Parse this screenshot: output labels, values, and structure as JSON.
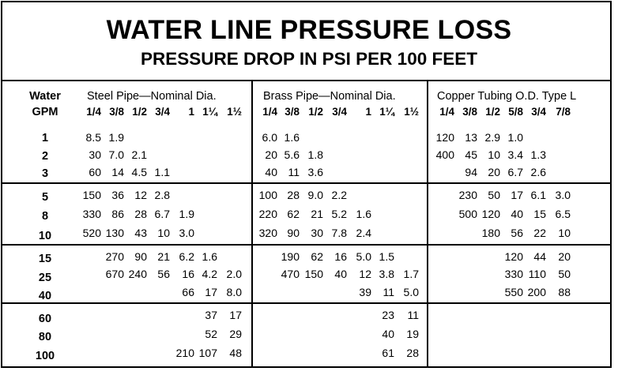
{
  "title": "WATER LINE PRESSURE LOSS",
  "subtitle": "PRESSURE DROP IN PSI PER 100 FEET",
  "gpm_header": {
    "line1": "Water",
    "line2": "GPM"
  },
  "steel": {
    "header": "Steel Pipe—Nominal Dia.",
    "sizes": [
      "1/4",
      "3/8",
      "1/2",
      "3/4",
      "1",
      "1¼",
      "1½"
    ]
  },
  "brass": {
    "header": "Brass Pipe—Nominal Dia.",
    "sizes": [
      "1/4",
      "3/8",
      "1/2",
      "3/4",
      "1",
      "1¼",
      "1½"
    ]
  },
  "copper": {
    "header": "Copper Tubing O.D. Type L",
    "sizes": [
      "1/4",
      "3/8",
      "1/2",
      "5/8",
      "3/4",
      "7/8"
    ]
  },
  "gpm": [
    "1",
    "2",
    "3",
    "5",
    "8",
    "10",
    "15",
    "25",
    "40",
    "60",
    "80",
    "100"
  ],
  "rows": [
    {
      "steel": [
        "8.5",
        "1.9",
        "",
        "",
        "",
        "",
        ""
      ],
      "brass": [
        "6.0",
        "1.6",
        "",
        "",
        "",
        "",
        ""
      ],
      "copper": [
        "120",
        "13",
        "2.9",
        "1.0",
        "",
        ""
      ]
    },
    {
      "steel": [
        "30",
        "7.0",
        "2.1",
        "",
        "",
        "",
        ""
      ],
      "brass": [
        "20",
        "5.6",
        "1.8",
        "",
        "",
        "",
        ""
      ],
      "copper": [
        "400",
        "45",
        "10",
        "3.4",
        "1.3",
        ""
      ]
    },
    {
      "steel": [
        "60",
        "14",
        "4.5",
        "1.1",
        "",
        "",
        ""
      ],
      "brass": [
        "40",
        "11",
        "3.6",
        "",
        "",
        "",
        ""
      ],
      "copper": [
        "",
        "94",
        "20",
        "6.7",
        "2.6",
        ""
      ]
    },
    {
      "steel": [
        "150",
        "36",
        "12",
        "2.8",
        "",
        "",
        ""
      ],
      "brass": [
        "100",
        "28",
        "9.0",
        "2.2",
        "",
        "",
        ""
      ],
      "copper": [
        "",
        "230",
        "50",
        "17",
        "6.1",
        "3.0"
      ]
    },
    {
      "steel": [
        "330",
        "86",
        "28",
        "6.7",
        "1.9",
        "",
        ""
      ],
      "brass": [
        "220",
        "62",
        "21",
        "5.2",
        "1.6",
        "",
        ""
      ],
      "copper": [
        "",
        "500",
        "120",
        "40",
        "15",
        "6.5"
      ]
    },
    {
      "steel": [
        "520",
        "130",
        "43",
        "10",
        "3.0",
        "",
        ""
      ],
      "brass": [
        "320",
        "90",
        "30",
        "7.8",
        "2.4",
        "",
        ""
      ],
      "copper": [
        "",
        "",
        "180",
        "56",
        "22",
        "10"
      ]
    },
    {
      "steel": [
        "",
        "270",
        "90",
        "21",
        "6.2",
        "1.6",
        ""
      ],
      "brass": [
        "",
        "190",
        "62",
        "16",
        "5.0",
        "1.5",
        ""
      ],
      "copper": [
        "",
        "",
        "",
        "120",
        "44",
        "20"
      ]
    },
    {
      "steel": [
        "",
        "670",
        "240",
        "56",
        "16",
        "4.2",
        "2.0"
      ],
      "brass": [
        "",
        "470",
        "150",
        "40",
        "12",
        "3.8",
        "1.7"
      ],
      "copper": [
        "",
        "",
        "",
        "330",
        "110",
        "50"
      ]
    },
    {
      "steel": [
        "",
        "",
        "",
        "",
        "66",
        "17",
        "8.0"
      ],
      "brass": [
        "",
        "",
        "",
        "",
        "39",
        "11",
        "5.0"
      ],
      "copper": [
        "",
        "",
        "",
        "550",
        "200",
        "88"
      ]
    },
    {
      "steel": [
        "",
        "",
        "",
        "",
        "",
        "37",
        "17"
      ],
      "brass": [
        "",
        "",
        "",
        "",
        "",
        "23",
        "11"
      ],
      "copper": [
        "",
        "",
        "",
        "",
        "",
        ""
      ]
    },
    {
      "steel": [
        "",
        "",
        "",
        "",
        "",
        "52",
        "29"
      ],
      "brass": [
        "",
        "",
        "",
        "",
        "",
        "40",
        "19"
      ],
      "copper": [
        "",
        "",
        "",
        "",
        "",
        ""
      ]
    },
    {
      "steel": [
        "",
        "",
        "",
        "",
        "210",
        "107",
        "48"
      ],
      "brass": [
        "",
        "",
        "",
        "",
        "",
        "61",
        "28"
      ],
      "copper": [
        "",
        "",
        "",
        "",
        "",
        ""
      ]
    }
  ]
}
